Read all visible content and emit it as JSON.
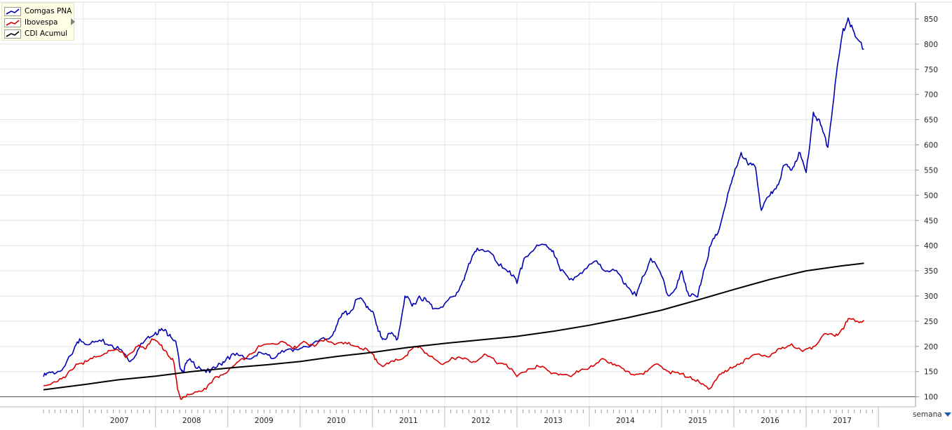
{
  "chart_data": {
    "type": "line",
    "y_ticks": [
      100,
      150,
      200,
      250,
      300,
      350,
      400,
      450,
      500,
      550,
      600,
      650,
      700,
      750,
      800,
      850
    ],
    "ylim": [
      80,
      882
    ],
    "x_years": [
      "2007",
      "2008",
      "2009",
      "2010",
      "2011",
      "2012",
      "2013",
      "2014",
      "2015",
      "2016",
      "2017"
    ],
    "xlim": [
      2006.45,
      2017.95
    ],
    "baseline": 100,
    "grid": true,
    "legend_position": "top-left",
    "period_selector": "semana",
    "series": [
      {
        "name": "Comgas PNA",
        "color": "#0000b4",
        "points": [
          [
            2006.45,
            140
          ],
          [
            2006.55,
            148
          ],
          [
            2006.7,
            152
          ],
          [
            2006.85,
            185
          ],
          [
            2006.95,
            215
          ],
          [
            2007.1,
            205
          ],
          [
            2007.25,
            210
          ],
          [
            2007.4,
            202
          ],
          [
            2007.55,
            188
          ],
          [
            2007.65,
            170
          ],
          [
            2007.75,
            192
          ],
          [
            2007.9,
            220
          ],
          [
            2008.0,
            228
          ],
          [
            2008.1,
            232
          ],
          [
            2008.2,
            224
          ],
          [
            2008.28,
            210
          ],
          [
            2008.33,
            165
          ],
          [
            2008.38,
            150
          ],
          [
            2008.45,
            172
          ],
          [
            2008.6,
            160
          ],
          [
            2008.75,
            148
          ],
          [
            2008.9,
            165
          ],
          [
            2009.0,
            180
          ],
          [
            2009.15,
            182
          ],
          [
            2009.3,
            175
          ],
          [
            2009.45,
            188
          ],
          [
            2009.6,
            176
          ],
          [
            2009.75,
            192
          ],
          [
            2009.9,
            190
          ],
          [
            2010.05,
            200
          ],
          [
            2010.25,
            210
          ],
          [
            2010.4,
            215
          ],
          [
            2010.5,
            240
          ],
          [
            2010.6,
            265
          ],
          [
            2010.7,
            270
          ],
          [
            2010.8,
            295
          ],
          [
            2010.9,
            285
          ],
          [
            2011.0,
            270
          ],
          [
            2011.08,
            230
          ],
          [
            2011.15,
            215
          ],
          [
            2011.25,
            225
          ],
          [
            2011.35,
            215
          ],
          [
            2011.45,
            300
          ],
          [
            2011.55,
            280
          ],
          [
            2011.65,
            300
          ],
          [
            2011.75,
            290
          ],
          [
            2011.85,
            275
          ],
          [
            2012.0,
            285
          ],
          [
            2012.15,
            300
          ],
          [
            2012.25,
            330
          ],
          [
            2012.35,
            365
          ],
          [
            2012.45,
            395
          ],
          [
            2012.6,
            390
          ],
          [
            2012.75,
            360
          ],
          [
            2012.9,
            350
          ],
          [
            2013.0,
            325
          ],
          [
            2013.1,
            375
          ],
          [
            2013.25,
            395
          ],
          [
            2013.4,
            402
          ],
          [
            2013.5,
            390
          ],
          [
            2013.6,
            350
          ],
          [
            2013.75,
            335
          ],
          [
            2013.9,
            345
          ],
          [
            2014.1,
            370
          ],
          [
            2014.25,
            350
          ],
          [
            2014.4,
            345
          ],
          [
            2014.5,
            325
          ],
          [
            2014.65,
            300
          ],
          [
            2014.75,
            340
          ],
          [
            2014.85,
            375
          ],
          [
            2015.0,
            340
          ],
          [
            2015.1,
            300
          ],
          [
            2015.2,
            315
          ],
          [
            2015.28,
            350
          ],
          [
            2015.38,
            300
          ],
          [
            2015.5,
            298
          ],
          [
            2015.58,
            350
          ],
          [
            2015.68,
            400
          ],
          [
            2015.78,
            425
          ],
          [
            2015.9,
            490
          ],
          [
            2016.0,
            540
          ],
          [
            2016.1,
            585
          ],
          [
            2016.2,
            560
          ],
          [
            2016.3,
            555
          ],
          [
            2016.38,
            470
          ],
          [
            2016.5,
            500
          ],
          [
            2016.6,
            520
          ],
          [
            2016.7,
            560
          ],
          [
            2016.8,
            550
          ],
          [
            2016.9,
            585
          ],
          [
            2017.0,
            545
          ],
          [
            2017.1,
            665
          ],
          [
            2017.2,
            640
          ],
          [
            2017.3,
            595
          ],
          [
            2017.4,
            720
          ],
          [
            2017.5,
            820
          ],
          [
            2017.58,
            852
          ],
          [
            2017.68,
            815
          ],
          [
            2017.8,
            790
          ]
        ]
      },
      {
        "name": "Ibovespa",
        "color": "#d80000",
        "points": [
          [
            2006.45,
            122
          ],
          [
            2006.6,
            130
          ],
          [
            2006.75,
            138
          ],
          [
            2006.9,
            165
          ],
          [
            2007.05,
            170
          ],
          [
            2007.2,
            180
          ],
          [
            2007.35,
            192
          ],
          [
            2007.5,
            190
          ],
          [
            2007.6,
            180
          ],
          [
            2007.75,
            200
          ],
          [
            2007.85,
            195
          ],
          [
            2007.95,
            215
          ],
          [
            2008.05,
            205
          ],
          [
            2008.15,
            190
          ],
          [
            2008.25,
            170
          ],
          [
            2008.3,
            120
          ],
          [
            2008.35,
            95
          ],
          [
            2008.42,
            100
          ],
          [
            2008.55,
            110
          ],
          [
            2008.7,
            115
          ],
          [
            2008.85,
            140
          ],
          [
            2009.0,
            150
          ],
          [
            2009.15,
            170
          ],
          [
            2009.3,
            185
          ],
          [
            2009.45,
            200
          ],
          [
            2009.6,
            205
          ],
          [
            2009.75,
            210
          ],
          [
            2009.9,
            195
          ],
          [
            2010.05,
            210
          ],
          [
            2010.2,
            200
          ],
          [
            2010.35,
            215
          ],
          [
            2010.5,
            205
          ],
          [
            2010.65,
            205
          ],
          [
            2010.8,
            200
          ],
          [
            2010.95,
            190
          ],
          [
            2011.05,
            175
          ],
          [
            2011.15,
            160
          ],
          [
            2011.3,
            170
          ],
          [
            2011.45,
            180
          ],
          [
            2011.55,
            195
          ],
          [
            2011.65,
            200
          ],
          [
            2011.8,
            180
          ],
          [
            2011.95,
            165
          ],
          [
            2012.1,
            178
          ],
          [
            2012.25,
            175
          ],
          [
            2012.4,
            170
          ],
          [
            2012.55,
            185
          ],
          [
            2012.7,
            170
          ],
          [
            2012.85,
            165
          ],
          [
            2013.0,
            140
          ],
          [
            2013.15,
            155
          ],
          [
            2013.3,
            160
          ],
          [
            2013.45,
            150
          ],
          [
            2013.6,
            145
          ],
          [
            2013.75,
            140
          ],
          [
            2013.9,
            155
          ],
          [
            2014.05,
            160
          ],
          [
            2014.2,
            175
          ],
          [
            2014.35,
            165
          ],
          [
            2014.5,
            150
          ],
          [
            2014.65,
            145
          ],
          [
            2014.8,
            150
          ],
          [
            2014.95,
            165
          ],
          [
            2015.1,
            150
          ],
          [
            2015.25,
            145
          ],
          [
            2015.4,
            140
          ],
          [
            2015.55,
            125
          ],
          [
            2015.65,
            115
          ],
          [
            2015.78,
            140
          ],
          [
            2015.9,
            150
          ],
          [
            2016.05,
            165
          ],
          [
            2016.2,
            175
          ],
          [
            2016.35,
            185
          ],
          [
            2016.5,
            180
          ],
          [
            2016.65,
            195
          ],
          [
            2016.8,
            205
          ],
          [
            2016.95,
            190
          ],
          [
            2017.1,
            200
          ],
          [
            2017.25,
            225
          ],
          [
            2017.4,
            220
          ],
          [
            2017.5,
            235
          ],
          [
            2017.6,
            255
          ],
          [
            2017.7,
            250
          ],
          [
            2017.8,
            252
          ]
        ]
      },
      {
        "name": "CDI Acumul",
        "color": "#000000",
        "points": [
          [
            2006.45,
            114
          ],
          [
            2007.0,
            124
          ],
          [
            2007.5,
            134
          ],
          [
            2008.0,
            141
          ],
          [
            2008.5,
            150
          ],
          [
            2009.0,
            157
          ],
          [
            2009.5,
            163
          ],
          [
            2010.0,
            170
          ],
          [
            2010.5,
            180
          ],
          [
            2011.0,
            188
          ],
          [
            2011.5,
            198
          ],
          [
            2012.0,
            206
          ],
          [
            2012.5,
            213
          ],
          [
            2013.0,
            220
          ],
          [
            2013.5,
            230
          ],
          [
            2014.0,
            242
          ],
          [
            2014.5,
            256
          ],
          [
            2015.0,
            272
          ],
          [
            2015.5,
            292
          ],
          [
            2016.0,
            313
          ],
          [
            2016.5,
            333
          ],
          [
            2017.0,
            350
          ],
          [
            2017.5,
            360
          ],
          [
            2017.8,
            365
          ]
        ]
      }
    ]
  }
}
